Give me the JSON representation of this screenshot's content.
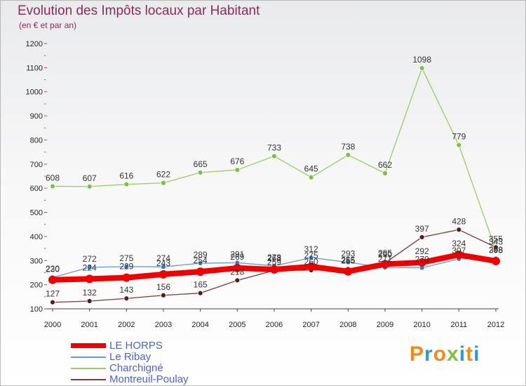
{
  "title": "Evolution des Impôts locaux par Habitant",
  "subtitle": "(en € et par an)",
  "logo": "Proxiti",
  "chart_data": {
    "type": "line",
    "x": [
      2000,
      2001,
      2002,
      2003,
      2004,
      2005,
      2006,
      2007,
      2008,
      2009,
      2010,
      2011,
      2012
    ],
    "ylim": [
      100,
      1200
    ],
    "yticks": [
      100,
      200,
      300,
      400,
      500,
      600,
      700,
      800,
      900,
      1000,
      1100,
      1200
    ],
    "grid": false,
    "legend_position": "bottom-left",
    "series": [
      {
        "name": "Charchigné",
        "color": "#99cc66",
        "marker": "#7ac142",
        "values": [
          608,
          607,
          616,
          622,
          665,
          676,
          733,
          645,
          738,
          662,
          1098,
          779,
          343
        ]
      },
      {
        "name": "Montreuil-Poulay",
        "color": "#7a3a3a",
        "marker": "#5a1a1a",
        "values": [
          127,
          132,
          143,
          156,
          165,
          218,
          259,
          260,
          265,
          290,
          397,
          428,
          355
        ]
      },
      {
        "name": "Le Ribay",
        "color": "#6699cc",
        "marker": "#2a7fd4",
        "values": [
          230,
          272,
          275,
          274,
          289,
          291,
          278,
          312,
          293,
          271,
          270,
          307,
          308
        ]
      },
      {
        "name": "LE HORPS",
        "color": "#ee0000",
        "marker": "#ee0000",
        "values": [
          220,
          224,
          229,
          243,
          254,
          269,
          263,
          275,
          255,
          285,
          292,
          324,
          298
        ]
      }
    ]
  },
  "legend": [
    {
      "name": "LE HORPS",
      "color": "#ee0000"
    },
    {
      "name": "Le Ribay",
      "color": "#6699cc"
    },
    {
      "name": "Charchigné",
      "color": "#99cc66"
    },
    {
      "name": "Montreuil-Poulay",
      "color": "#7a3a3a"
    }
  ],
  "logo_colors": [
    "#f08a1c",
    "#2a9ad4",
    "#f08a1c",
    "#7ac142",
    "#2a9ad4",
    "#f08a1c",
    "#2a9ad4"
  ]
}
